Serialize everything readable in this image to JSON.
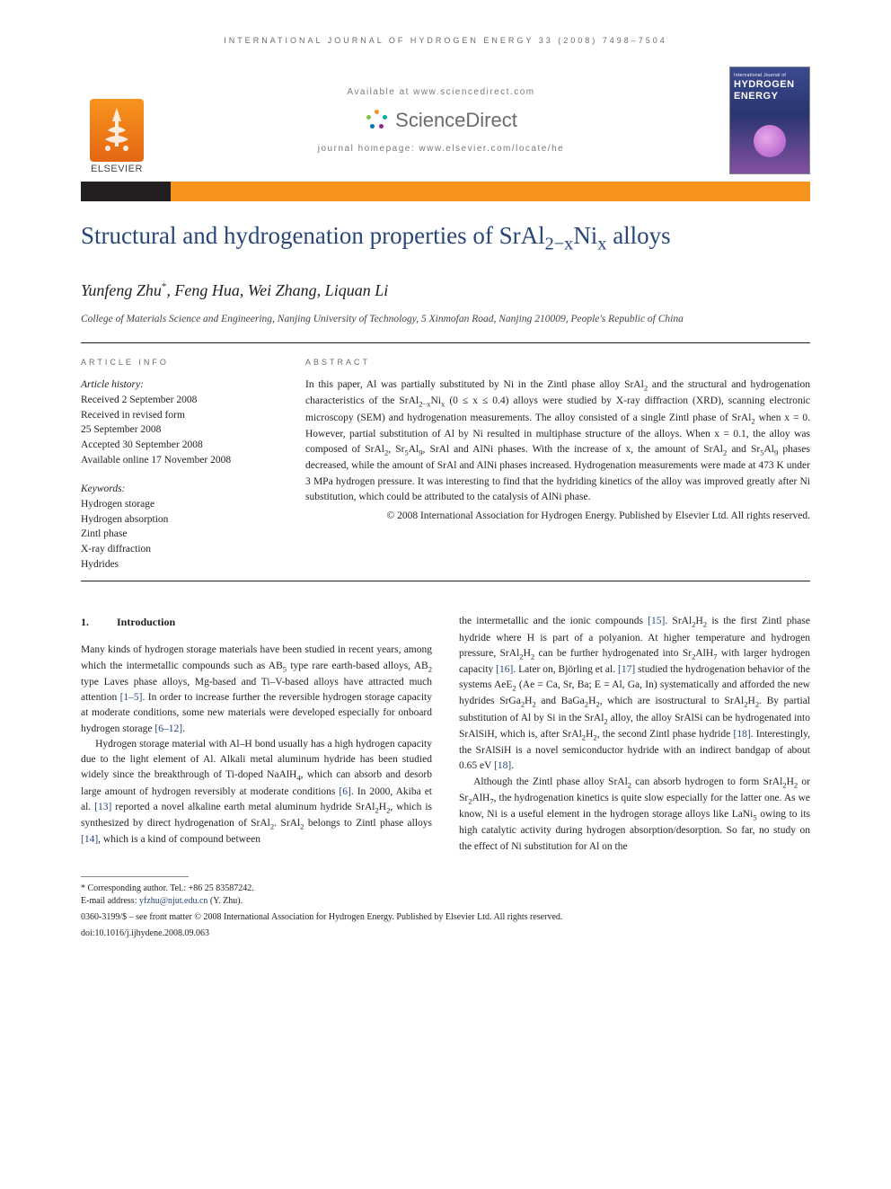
{
  "colors": {
    "brand_blue": "#29467a",
    "orange": "#f7941d",
    "dark": "#231f20",
    "grey_text": "#6b6b6b",
    "cover_top": "#3b4a8f",
    "cover_bottom": "#8451a0",
    "link": "#29467a"
  },
  "running_header": "INTERNATIONAL JOURNAL OF HYDROGEN ENERGY 33 (2008) 7498–7504",
  "masthead": {
    "elsevier_label": "ELSEVIER",
    "available_text": "Available at www.sciencedirect.com",
    "sd_brand": "ScienceDirect",
    "homepage_text": "journal homepage: www.elsevier.com/locate/he",
    "cover_small": "International Journal of",
    "cover_big1": "HYDROGEN",
    "cover_big2": "ENERGY"
  },
  "title_html": "Structural and hydrogenation properties of SrAl<sub>2−x</sub>Ni<sub>x</sub> alloys",
  "authors_html": "Yunfeng Zhu<sup>*</sup>, Feng Hua, Wei Zhang, Liquan Li",
  "affiliation": "College of Materials Science and Engineering, Nanjing University of Technology, 5 Xinmofan Road, Nanjing 210009, People's Republic of China",
  "article_info": {
    "label": "ARTICLE INFO",
    "history_label": "Article history:",
    "received": "Received 2 September 2008",
    "revised1": "Received in revised form",
    "revised2": "25 September 2008",
    "accepted": "Accepted 30 September 2008",
    "online": "Available online 17 November 2008",
    "keywords_label": "Keywords:",
    "keywords": [
      "Hydrogen storage",
      "Hydrogen absorption",
      "Zintl phase",
      "X-ray diffraction",
      "Hydrides"
    ]
  },
  "abstract": {
    "label": "ABSTRACT",
    "text_html": "In this paper, Al was partially substituted by Ni in the Zintl phase alloy SrAl<sub>2</sub> and the structural and hydrogenation characteristics of the SrAl<sub>2−x</sub>Ni<sub>x</sub> (0 ≤ x ≤ 0.4) alloys were studied by X-ray diffraction (XRD), scanning electronic microscopy (SEM) and hydrogenation measurements. The alloy consisted of a single Zintl phase of SrAl<sub>2</sub> when x = 0. However, partial substitution of Al by Ni resulted in multiphase structure of the alloys. When x = 0.1, the alloy was composed of SrAl<sub>2</sub>, Sr<sub>5</sub>Al<sub>9</sub>, SrAl and AlNi phases. With the increase of x, the amount of SrAl<sub>2</sub> and Sr<sub>5</sub>Al<sub>9</sub> phases decreased, while the amount of SrAl and AlNi phases increased. Hydrogenation measurements were made at 473 K under 3 MPa hydrogen pressure. It was interesting to find that the hydriding kinetics of the alloy was improved greatly after Ni substitution, which could be attributed to the catalysis of AlNi phase.",
    "copyright": "© 2008 International Association for Hydrogen Energy. Published by Elsevier Ltd. All rights reserved."
  },
  "section1": {
    "number": "1.",
    "title": "Introduction"
  },
  "body": {
    "col1_p1_html": "Many kinds of hydrogen storage materials have been studied in recent years, among which the intermetallic compounds such as AB<sub>5</sub> type rare earth-based alloys, AB<sub>2</sub> type Laves phase alloys, Mg-based and Ti–V-based alloys have attracted much attention <span class=\"ref-link\">[1–5]</span>. In order to increase further the reversible hydrogen storage capacity at moderate conditions, some new materials were developed especially for onboard hydrogen storage <span class=\"ref-link\">[6–12]</span>.",
    "col1_p2_html": "Hydrogen storage material with Al–H bond usually has a high hydrogen capacity due to the light element of Al. Alkali metal aluminum hydride has been studied widely since the breakthrough of Ti-doped NaAlH<sub>4</sub>, which can absorb and desorb large amount of hydrogen reversibly at moderate conditions <span class=\"ref-link\">[6]</span>. In 2000, Akiba et al. <span class=\"ref-link\">[13]</span> reported a novel alkaline earth metal aluminum hydride SrAl<sub>2</sub>H<sub>2</sub>, which is synthesized by direct hydrogenation of SrAl<sub>2</sub>. SrAl<sub>2</sub> belongs to Zintl phase alloys <span class=\"ref-link\">[14]</span>, which is a kind of compound between",
    "col2_p1_html": "the intermetallic and the ionic compounds <span class=\"ref-link\">[15]</span>. SrAl<sub>2</sub>H<sub>2</sub> is the first Zintl phase hydride where H is part of a polyanion. At higher temperature and hydrogen pressure, SrAl<sub>2</sub>H<sub>2</sub> can be further hydrogenated into Sr<sub>2</sub>AlH<sub>7</sub> with larger hydrogen capacity <span class=\"ref-link\">[16]</span>. Later on, Björling et al. <span class=\"ref-link\">[17]</span> studied the hydrogenation behavior of the systems AeE<sub>2</sub> (Ae = Ca, Sr, Ba; E = Al, Ga, In) systematically and afforded the new hydrides SrGa<sub>2</sub>H<sub>2</sub> and BaGa<sub>2</sub>H<sub>2</sub>, which are isostructural to SrAl<sub>2</sub>H<sub>2</sub>. By partial substitution of Al by Si in the SrAl<sub>2</sub> alloy, the alloy SrAlSi can be hydrogenated into SrAlSiH, which is, after SrAl<sub>2</sub>H<sub>2</sub>, the second Zintl phase hydride <span class=\"ref-link\">[18]</span>. Interestingly, the SrAlSiH is a novel semiconductor hydride with an indirect bandgap of about 0.65 eV <span class=\"ref-link\">[18]</span>.",
    "col2_p2_html": "Although the Zintl phase alloy SrAl<sub>2</sub> can absorb hydrogen to form SrAl<sub>2</sub>H<sub>2</sub> or Sr<sub>2</sub>AlH<sub>7</sub>, the hydrogenation kinetics is quite slow especially for the latter one. As we know, Ni is a useful element in the hydrogen storage alloys like LaNi<sub>5</sub> owing to its high catalytic activity during hydrogen absorption/desorption. So far, no study on the effect of Ni substitution for Al on the"
  },
  "footnote": {
    "corresponding": "* Corresponding author. Tel.: +86 25 83587242.",
    "email_label": "E-mail address: ",
    "email": "yfzhu@njut.edu.cn",
    "email_suffix": " (Y. Zhu)."
  },
  "bottom_copyright": "0360-3199/$ – see front matter © 2008 International Association for Hydrogen Energy. Published by Elsevier Ltd. All rights reserved.",
  "doi": "doi:10.1016/j.ijhydene.2008.09.063"
}
